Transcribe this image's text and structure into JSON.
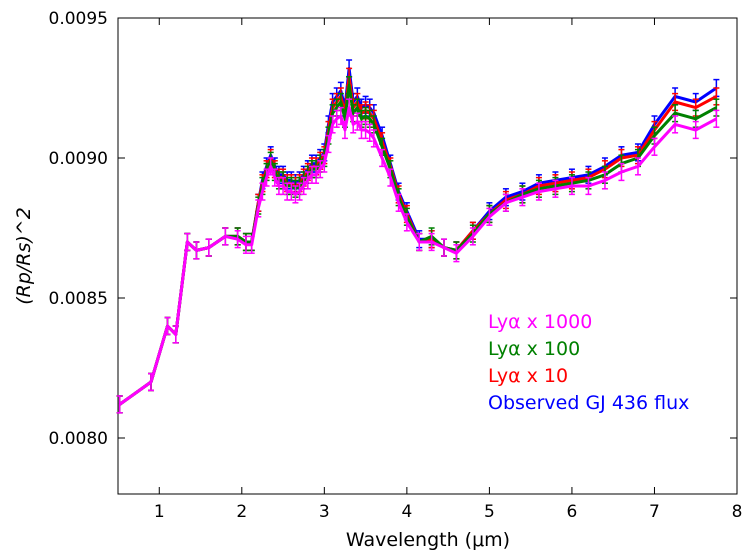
{
  "chart_data": {
    "type": "line",
    "title": "",
    "xlabel": "Wavelength (μm)",
    "ylabel": "(Rp/Rs)^2",
    "xlim": [
      0.5,
      8.0
    ],
    "ylim": [
      0.0078,
      0.0095
    ],
    "xticks": [
      1,
      2,
      3,
      4,
      5,
      6,
      7,
      8
    ],
    "xtick_labels": [
      "1",
      "2",
      "3",
      "4",
      "5",
      "6",
      "7",
      "8"
    ],
    "yticks": [
      0.008,
      0.0085,
      0.009,
      0.0095
    ],
    "ytick_labels": [
      "0.0080",
      "0.0085",
      "0.0090",
      "0.0095"
    ],
    "grid": false,
    "legend_position": "lower-right",
    "x": [
      0.52,
      0.9,
      1.1,
      1.2,
      1.34,
      1.45,
      1.6,
      1.8,
      1.95,
      2.05,
      2.12,
      2.2,
      2.25,
      2.3,
      2.35,
      2.4,
      2.45,
      2.5,
      2.55,
      2.6,
      2.65,
      2.7,
      2.75,
      2.8,
      2.85,
      2.9,
      2.95,
      3.0,
      3.05,
      3.1,
      3.15,
      3.2,
      3.25,
      3.3,
      3.35,
      3.4,
      3.45,
      3.5,
      3.55,
      3.6,
      3.7,
      3.8,
      3.9,
      4.0,
      4.15,
      4.3,
      4.45,
      4.6,
      4.8,
      5.0,
      5.2,
      5.4,
      5.6,
      5.8,
      6.0,
      6.2,
      6.4,
      6.6,
      6.8,
      7.0,
      7.25,
      7.5,
      7.75
    ],
    "series": [
      {
        "name": "Observed GJ 436 flux",
        "color": "#0000ff",
        "values": [
          0.00812,
          0.0082,
          0.0084,
          0.00837,
          0.0087,
          0.00867,
          0.00868,
          0.00872,
          0.00872,
          0.0087,
          0.0087,
          0.00884,
          0.00892,
          0.00897,
          0.00901,
          0.00897,
          0.00894,
          0.00894,
          0.00892,
          0.00892,
          0.00891,
          0.00892,
          0.00894,
          0.00896,
          0.00898,
          0.00898,
          0.009,
          0.00902,
          0.00912,
          0.0092,
          0.00922,
          0.00924,
          0.00918,
          0.00932,
          0.0092,
          0.00922,
          0.00918,
          0.00919,
          0.00918,
          0.00916,
          0.00908,
          0.00898,
          0.00888,
          0.00881,
          0.00871,
          0.00871,
          0.00868,
          0.00867,
          0.00874,
          0.00881,
          0.00886,
          0.00888,
          0.00891,
          0.00892,
          0.00893,
          0.00894,
          0.00897,
          0.00901,
          0.00902,
          0.00912,
          0.00922,
          0.0092,
          0.00925
        ]
      },
      {
        "name": "Lyα x 10",
        "color": "#ff0000",
        "values": [
          0.00812,
          0.0082,
          0.0084,
          0.00837,
          0.0087,
          0.00867,
          0.00868,
          0.00872,
          0.00872,
          0.0087,
          0.0087,
          0.00884,
          0.00891,
          0.00896,
          0.009,
          0.00896,
          0.00893,
          0.00893,
          0.00891,
          0.00891,
          0.0089,
          0.00891,
          0.00893,
          0.00895,
          0.00897,
          0.00897,
          0.00899,
          0.00901,
          0.0091,
          0.00918,
          0.0092,
          0.00922,
          0.00916,
          0.00929,
          0.00918,
          0.0092,
          0.00916,
          0.00917,
          0.00916,
          0.00914,
          0.00906,
          0.00897,
          0.00887,
          0.0088,
          0.0087,
          0.00871,
          0.00868,
          0.00867,
          0.00874,
          0.0088,
          0.00885,
          0.00887,
          0.0089,
          0.00891,
          0.00892,
          0.00893,
          0.00896,
          0.009,
          0.00901,
          0.0091,
          0.0092,
          0.00918,
          0.00922
        ]
      },
      {
        "name": "Lyα x 100",
        "color": "#008000",
        "values": [
          0.00812,
          0.0082,
          0.0084,
          0.00837,
          0.0087,
          0.00867,
          0.00868,
          0.00872,
          0.00872,
          0.0087,
          0.0087,
          0.00883,
          0.0089,
          0.00895,
          0.00899,
          0.00895,
          0.00892,
          0.00892,
          0.0089,
          0.0089,
          0.00889,
          0.0089,
          0.00892,
          0.00894,
          0.00896,
          0.00896,
          0.00898,
          0.009,
          0.00908,
          0.00916,
          0.00918,
          0.0092,
          0.00914,
          0.00926,
          0.00916,
          0.00918,
          0.00914,
          0.00915,
          0.00914,
          0.00912,
          0.00904,
          0.00896,
          0.00886,
          0.00879,
          0.0087,
          0.00872,
          0.00868,
          0.00867,
          0.00873,
          0.0088,
          0.00884,
          0.00887,
          0.00889,
          0.0089,
          0.00891,
          0.00892,
          0.00894,
          0.00898,
          0.009,
          0.00908,
          0.00916,
          0.00914,
          0.00918
        ]
      },
      {
        "name": "Lyα x 1000",
        "color": "#ff00ff",
        "values": [
          0.00812,
          0.0082,
          0.0084,
          0.00837,
          0.0087,
          0.00867,
          0.00868,
          0.00872,
          0.00871,
          0.00869,
          0.00869,
          0.00882,
          0.00888,
          0.00893,
          0.00897,
          0.00893,
          0.0089,
          0.0089,
          0.00888,
          0.00888,
          0.00887,
          0.00888,
          0.0089,
          0.00892,
          0.00894,
          0.00894,
          0.00896,
          0.00898,
          0.00905,
          0.00912,
          0.00914,
          0.00915,
          0.0091,
          0.00918,
          0.00912,
          0.00913,
          0.0091,
          0.0091,
          0.00909,
          0.00907,
          0.009,
          0.00893,
          0.00884,
          0.00877,
          0.0087,
          0.0087,
          0.00868,
          0.00866,
          0.00872,
          0.00879,
          0.00884,
          0.00886,
          0.00888,
          0.00889,
          0.0089,
          0.0089,
          0.00892,
          0.00895,
          0.00897,
          0.00904,
          0.00912,
          0.0091,
          0.00914
        ]
      }
    ],
    "legend_entries": [
      "Lyα x 1000",
      "Lyα x 100",
      "Lyα x 10",
      "Observed GJ 436 flux"
    ],
    "legend_colors": [
      "#ff00ff",
      "#008000",
      "#ff0000",
      "#0000ff"
    ],
    "error_bar_halfwidth": 3e-05
  }
}
